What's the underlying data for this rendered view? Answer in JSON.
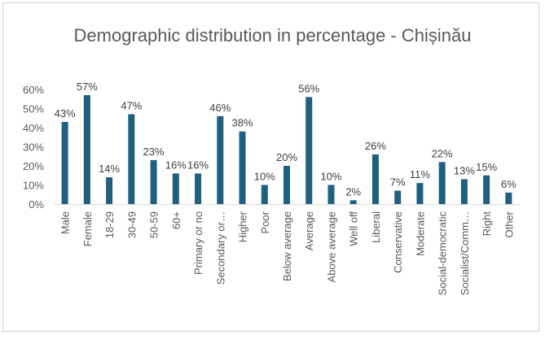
{
  "chart_data": {
    "type": "bar",
    "title": "Demographic distribution in percentage - Chișinău",
    "categories": [
      "Male",
      "Female",
      "18-29",
      "30-49",
      "50-59",
      "60+",
      "Primary or no",
      "Secondary or…",
      "Higher",
      "Poor",
      "Below average",
      "Average",
      "Above average",
      "Well off",
      "Liberal",
      "Conservative",
      "Moderate",
      "Social-democratic",
      "Socialist/Comm…",
      "Right",
      "Other"
    ],
    "values": [
      43,
      57,
      14,
      47,
      23,
      16,
      16,
      46,
      38,
      10,
      20,
      56,
      10,
      2,
      26,
      7,
      11,
      22,
      13,
      15,
      6
    ],
    "data_labels": [
      "43%",
      "57%",
      "14%",
      "47%",
      "23%",
      "16%",
      "16%",
      "46%",
      "38%",
      "10%",
      "20%",
      "56%",
      "10%",
      "2%",
      "26%",
      "7%",
      "11%",
      "22%",
      "13%",
      "15%",
      "6%"
    ],
    "y_ticks": [
      "0%",
      "10%",
      "20%",
      "30%",
      "40%",
      "50%",
      "60%"
    ],
    "ylim": [
      0,
      60
    ],
    "grid": false,
    "legend": "none",
    "bar_color": "#1f5f7f"
  }
}
